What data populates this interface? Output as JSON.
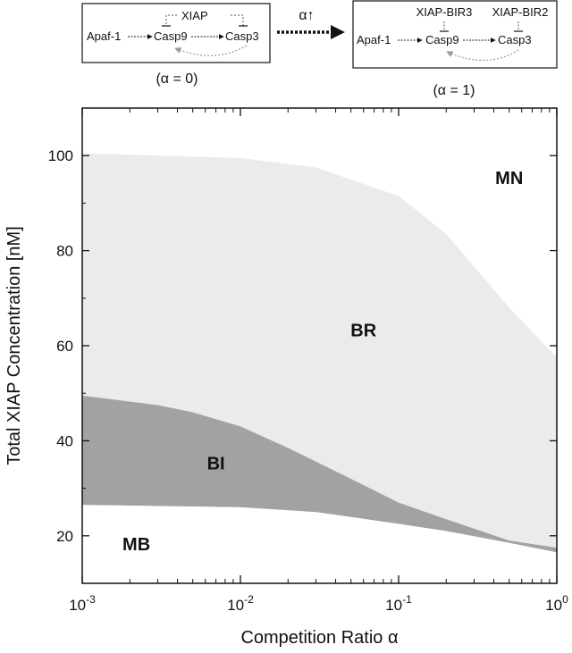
{
  "diagram": {
    "left": {
      "nodes": [
        "Apaf-1",
        "Casp9",
        "Casp3"
      ],
      "inhibitor": "XIAP",
      "caption": "(α = 0)"
    },
    "transition": {
      "label": "α↑"
    },
    "right": {
      "nodes": [
        "Apaf-1",
        "Casp9",
        "Casp3"
      ],
      "inhibitors": [
        "XIAP-BIR3",
        "XIAP-BIR2"
      ],
      "caption": "(α = 1)"
    }
  },
  "chart_data": {
    "type": "area",
    "xlabel": "Competition Ratio α",
    "ylabel": "Total XIAP Concentration [nM]",
    "x_scale": "log",
    "xlim": [
      0.001,
      1
    ],
    "ylim": [
      10,
      110
    ],
    "x_ticks": [
      {
        "value": 0.001,
        "base": "10",
        "exp": "-3"
      },
      {
        "value": 0.01,
        "base": "10",
        "exp": "-2"
      },
      {
        "value": 0.1,
        "base": "10",
        "exp": "-1"
      },
      {
        "value": 1,
        "base": "10",
        "exp": "0"
      }
    ],
    "y_ticks": [
      20,
      40,
      60,
      80,
      100
    ],
    "grid": false,
    "regions": [
      {
        "label": "MN",
        "color": "#ffffff"
      },
      {
        "label": "BR",
        "color": "#ebebeb"
      },
      {
        "label": "BI",
        "color": "#a2a2a2"
      },
      {
        "label": "MB",
        "color": "#ffffff"
      }
    ],
    "boundaries": {
      "mn_br": {
        "x": [
          0.001,
          0.01,
          0.03,
          0.1,
          0.2,
          0.5,
          1
        ],
        "y": [
          100.5,
          99.5,
          97.5,
          91.5,
          83.5,
          68,
          57.5
        ]
      },
      "br_bi": {
        "x": [
          0.001,
          0.003,
          0.005,
          0.01,
          0.02,
          0.05,
          0.1,
          0.2,
          0.5,
          1
        ],
        "y": [
          49.5,
          47.5,
          46,
          43,
          38.5,
          32,
          27,
          23.5,
          19,
          17.5
        ]
      },
      "bi_mb": {
        "x": [
          0.001,
          0.01,
          0.03,
          0.1,
          0.2,
          0.5,
          1
        ],
        "y": [
          26.5,
          26,
          25,
          22.5,
          21,
          18.5,
          16.5
        ]
      }
    },
    "label_positions": {
      "MN": {
        "x": 0.5,
        "y": 94
      },
      "BR": {
        "x": 0.06,
        "y": 62
      },
      "BI": {
        "x": 0.007,
        "y": 34
      },
      "MB": {
        "x": 0.0022,
        "y": 17
      }
    }
  }
}
